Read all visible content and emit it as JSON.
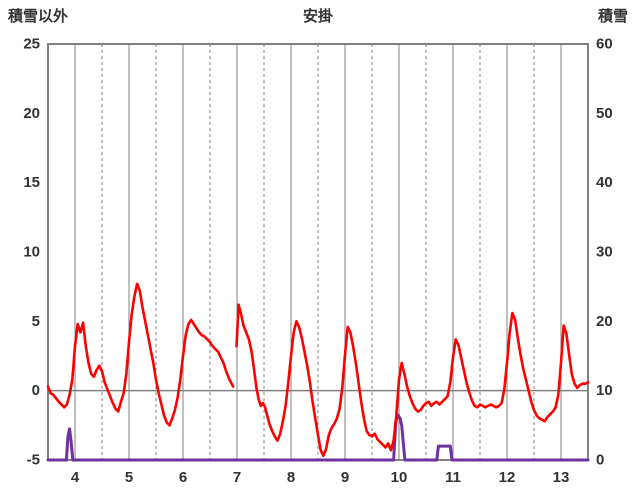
{
  "header": {
    "left_axis_title": "積雪以外",
    "chart_title": "安掛",
    "right_axis_title": "積雪"
  },
  "chart_data": {
    "type": "line",
    "title": "安掛",
    "x_axis": {
      "min": 3.5,
      "max": 13.5,
      "tick_values": [
        4,
        5,
        6,
        7,
        8,
        9,
        10,
        11,
        12,
        13
      ],
      "tick_labels": [
        "4",
        "5",
        "6",
        "7",
        "8",
        "9",
        "10",
        "11",
        "12",
        "13"
      ],
      "minor_gridlines": [
        4.5,
        5.5,
        6.5,
        7.5,
        8.5,
        9.5,
        10.5,
        11.5,
        12.5,
        13.5
      ]
    },
    "left_axis": {
      "title": "積雪以外",
      "min": -5,
      "max": 25,
      "ticks": [
        25,
        20,
        15,
        10,
        5,
        0,
        -5
      ]
    },
    "right_axis": {
      "title": "積雪",
      "min": 0,
      "max": 60,
      "ticks": [
        60,
        50,
        40,
        30,
        20,
        10,
        0
      ]
    },
    "grid": {
      "color": "#808080",
      "border_color": "#808080",
      "zero_line_value": 0
    },
    "legend": "none",
    "series": [
      {
        "name": "purple",
        "axis": "right",
        "color": "#7030A0",
        "width": 3,
        "points": [
          [
            3.5,
            0
          ],
          [
            3.84,
            0
          ],
          [
            3.87,
            3.5
          ],
          [
            3.9,
            4.5
          ],
          [
            3.93,
            2.5
          ],
          [
            3.96,
            0
          ],
          [
            9.9,
            0
          ],
          [
            9.94,
            5.5
          ],
          [
            9.98,
            6.5
          ],
          [
            10.02,
            6.0
          ],
          [
            10.05,
            5.0
          ],
          [
            10.08,
            2.5
          ],
          [
            10.11,
            0
          ],
          [
            10.7,
            0
          ],
          [
            10.73,
            2.0
          ],
          [
            10.95,
            2.0
          ],
          [
            10.98,
            0
          ],
          [
            13.5,
            0
          ]
        ]
      },
      {
        "name": "red",
        "axis": "left",
        "color": "#FF0000",
        "width": 2.6,
        "points": [
          [
            3.5,
            0.3
          ],
          [
            3.55,
            -0.2
          ],
          [
            3.6,
            -0.3
          ],
          [
            3.7,
            -0.8
          ],
          [
            3.8,
            -1.2
          ],
          [
            3.85,
            -1.0
          ],
          [
            3.9,
            -0.3
          ],
          [
            3.95,
            0.8
          ],
          [
            4.0,
            3.2
          ],
          [
            4.05,
            4.8
          ],
          [
            4.1,
            4.2
          ],
          [
            4.15,
            4.9
          ],
          [
            4.2,
            3.2
          ],
          [
            4.25,
            2.0
          ],
          [
            4.3,
            1.2
          ],
          [
            4.35,
            1.0
          ],
          [
            4.4,
            1.5
          ],
          [
            4.45,
            1.8
          ],
          [
            4.5,
            1.4
          ],
          [
            4.55,
            0.6
          ],
          [
            4.6,
            0.1
          ],
          [
            4.65,
            -0.4
          ],
          [
            4.7,
            -0.9
          ],
          [
            4.75,
            -1.3
          ],
          [
            4.8,
            -1.5
          ],
          [
            4.85,
            -0.8
          ],
          [
            4.9,
            -0.2
          ],
          [
            4.95,
            1.2
          ],
          [
            5.0,
            3.5
          ],
          [
            5.05,
            5.5
          ],
          [
            5.1,
            6.8
          ],
          [
            5.15,
            7.7
          ],
          [
            5.2,
            7.2
          ],
          [
            5.25,
            6.0
          ],
          [
            5.3,
            5.0
          ],
          [
            5.35,
            4.0
          ],
          [
            5.4,
            3.0
          ],
          [
            5.45,
            2.0
          ],
          [
            5.5,
            0.8
          ],
          [
            5.55,
            -0.2
          ],
          [
            5.6,
            -1.0
          ],
          [
            5.65,
            -1.8
          ],
          [
            5.7,
            -2.3
          ],
          [
            5.75,
            -2.5
          ],
          [
            5.8,
            -2.0
          ],
          [
            5.85,
            -1.4
          ],
          [
            5.9,
            -0.5
          ],
          [
            5.95,
            0.8
          ],
          [
            6.0,
            2.5
          ],
          [
            6.05,
            4.0
          ],
          [
            6.1,
            4.8
          ],
          [
            6.15,
            5.1
          ],
          [
            6.2,
            4.8
          ],
          [
            6.25,
            4.5
          ],
          [
            6.3,
            4.2
          ],
          [
            6.35,
            4.0
          ],
          [
            6.4,
            3.9
          ],
          [
            6.45,
            3.7
          ],
          [
            6.5,
            3.5
          ],
          [
            6.55,
            3.2
          ],
          [
            6.6,
            3.0
          ],
          [
            6.65,
            2.8
          ],
          [
            6.7,
            2.4
          ],
          [
            6.75,
            2.0
          ],
          [
            6.8,
            1.4
          ],
          [
            6.85,
            0.9
          ],
          [
            6.9,
            0.5
          ],
          [
            6.93,
            0.3
          ],
          null,
          [
            6.99,
            3.2
          ],
          [
            7.03,
            6.2
          ],
          [
            7.07,
            5.6
          ],
          [
            7.12,
            4.7
          ],
          [
            7.17,
            4.2
          ],
          [
            7.22,
            3.7
          ],
          [
            7.27,
            2.8
          ],
          [
            7.32,
            1.4
          ],
          [
            7.36,
            0.2
          ],
          [
            7.4,
            -0.6
          ],
          [
            7.44,
            -1.1
          ],
          [
            7.48,
            -0.9
          ],
          [
            7.52,
            -1.2
          ],
          [
            7.56,
            -1.8
          ],
          [
            7.6,
            -2.4
          ],
          [
            7.65,
            -2.9
          ],
          [
            7.7,
            -3.3
          ],
          [
            7.75,
            -3.6
          ],
          [
            7.8,
            -3.1
          ],
          [
            7.85,
            -2.2
          ],
          [
            7.9,
            -1.1
          ],
          [
            7.95,
            0.6
          ],
          [
            8.0,
            2.5
          ],
          [
            8.05,
            4.2
          ],
          [
            8.1,
            5.0
          ],
          [
            8.15,
            4.6
          ],
          [
            8.2,
            3.8
          ],
          [
            8.25,
            2.8
          ],
          [
            8.3,
            1.8
          ],
          [
            8.35,
            0.6
          ],
          [
            8.4,
            -0.8
          ],
          [
            8.45,
            -2.0
          ],
          [
            8.5,
            -3.2
          ],
          [
            8.55,
            -4.3
          ],
          [
            8.6,
            -4.7
          ],
          [
            8.65,
            -4.2
          ],
          [
            8.7,
            -3.2
          ],
          [
            8.75,
            -2.7
          ],
          [
            8.8,
            -2.4
          ],
          [
            8.85,
            -2.0
          ],
          [
            8.9,
            -1.3
          ],
          [
            8.95,
            0.2
          ],
          [
            9.0,
            2.6
          ],
          [
            9.05,
            4.6
          ],
          [
            9.1,
            4.2
          ],
          [
            9.15,
            3.2
          ],
          [
            9.2,
            2.0
          ],
          [
            9.25,
            0.6
          ],
          [
            9.3,
            -0.8
          ],
          [
            9.35,
            -2.0
          ],
          [
            9.4,
            -2.9
          ],
          [
            9.45,
            -3.2
          ],
          [
            9.5,
            -3.3
          ],
          [
            9.55,
            -3.1
          ],
          [
            9.6,
            -3.5
          ],
          [
            9.65,
            -3.7
          ],
          [
            9.7,
            -3.9
          ],
          [
            9.75,
            -4.1
          ],
          [
            9.8,
            -3.8
          ],
          [
            9.85,
            -4.3
          ],
          [
            9.9,
            -3.6
          ],
          [
            9.95,
            -1.8
          ],
          [
            10.0,
            0.8
          ],
          [
            10.05,
            2.0
          ],
          [
            10.1,
            1.2
          ],
          [
            10.15,
            0.3
          ],
          [
            10.2,
            -0.4
          ],
          [
            10.25,
            -0.9
          ],
          [
            10.3,
            -1.3
          ],
          [
            10.35,
            -1.5
          ],
          [
            10.4,
            -1.4
          ],
          [
            10.45,
            -1.1
          ],
          [
            10.5,
            -0.9
          ],
          [
            10.55,
            -0.8
          ],
          [
            10.6,
            -1.1
          ],
          [
            10.65,
            -0.9
          ],
          [
            10.7,
            -0.8
          ],
          [
            10.75,
            -1.0
          ],
          [
            10.8,
            -0.8
          ],
          [
            10.85,
            -0.6
          ],
          [
            10.9,
            -0.4
          ],
          [
            10.95,
            0.6
          ],
          [
            11.0,
            2.4
          ],
          [
            11.05,
            3.7
          ],
          [
            11.1,
            3.3
          ],
          [
            11.15,
            2.4
          ],
          [
            11.2,
            1.5
          ],
          [
            11.25,
            0.6
          ],
          [
            11.3,
            -0.1
          ],
          [
            11.35,
            -0.7
          ],
          [
            11.4,
            -1.1
          ],
          [
            11.45,
            -1.2
          ],
          [
            11.5,
            -1.0
          ],
          [
            11.55,
            -1.1
          ],
          [
            11.6,
            -1.2
          ],
          [
            11.65,
            -1.1
          ],
          [
            11.7,
            -1.0
          ],
          [
            11.75,
            -1.1
          ],
          [
            11.8,
            -1.2
          ],
          [
            11.85,
            -1.1
          ],
          [
            11.9,
            -0.9
          ],
          [
            11.95,
            0.1
          ],
          [
            12.0,
            2.0
          ],
          [
            12.05,
            4.2
          ],
          [
            12.1,
            5.6
          ],
          [
            12.15,
            5.1
          ],
          [
            12.2,
            3.8
          ],
          [
            12.25,
            2.6
          ],
          [
            12.3,
            1.6
          ],
          [
            12.35,
            0.8
          ],
          [
            12.4,
            0.0
          ],
          [
            12.45,
            -0.8
          ],
          [
            12.5,
            -1.4
          ],
          [
            12.55,
            -1.8
          ],
          [
            12.6,
            -2.0
          ],
          [
            12.65,
            -2.1
          ],
          [
            12.7,
            -2.2
          ],
          [
            12.75,
            -1.9
          ],
          [
            12.8,
            -1.7
          ],
          [
            12.85,
            -1.5
          ],
          [
            12.9,
            -1.2
          ],
          [
            12.95,
            -0.3
          ],
          [
            13.0,
            2.0
          ],
          [
            13.05,
            4.7
          ],
          [
            13.1,
            4.1
          ],
          [
            13.15,
            2.6
          ],
          [
            13.2,
            1.2
          ],
          [
            13.25,
            0.5
          ],
          [
            13.3,
            0.2
          ],
          [
            13.35,
            0.4
          ],
          [
            13.4,
            0.5
          ],
          [
            13.45,
            0.5
          ],
          [
            13.5,
            0.6
          ]
        ]
      }
    ]
  }
}
